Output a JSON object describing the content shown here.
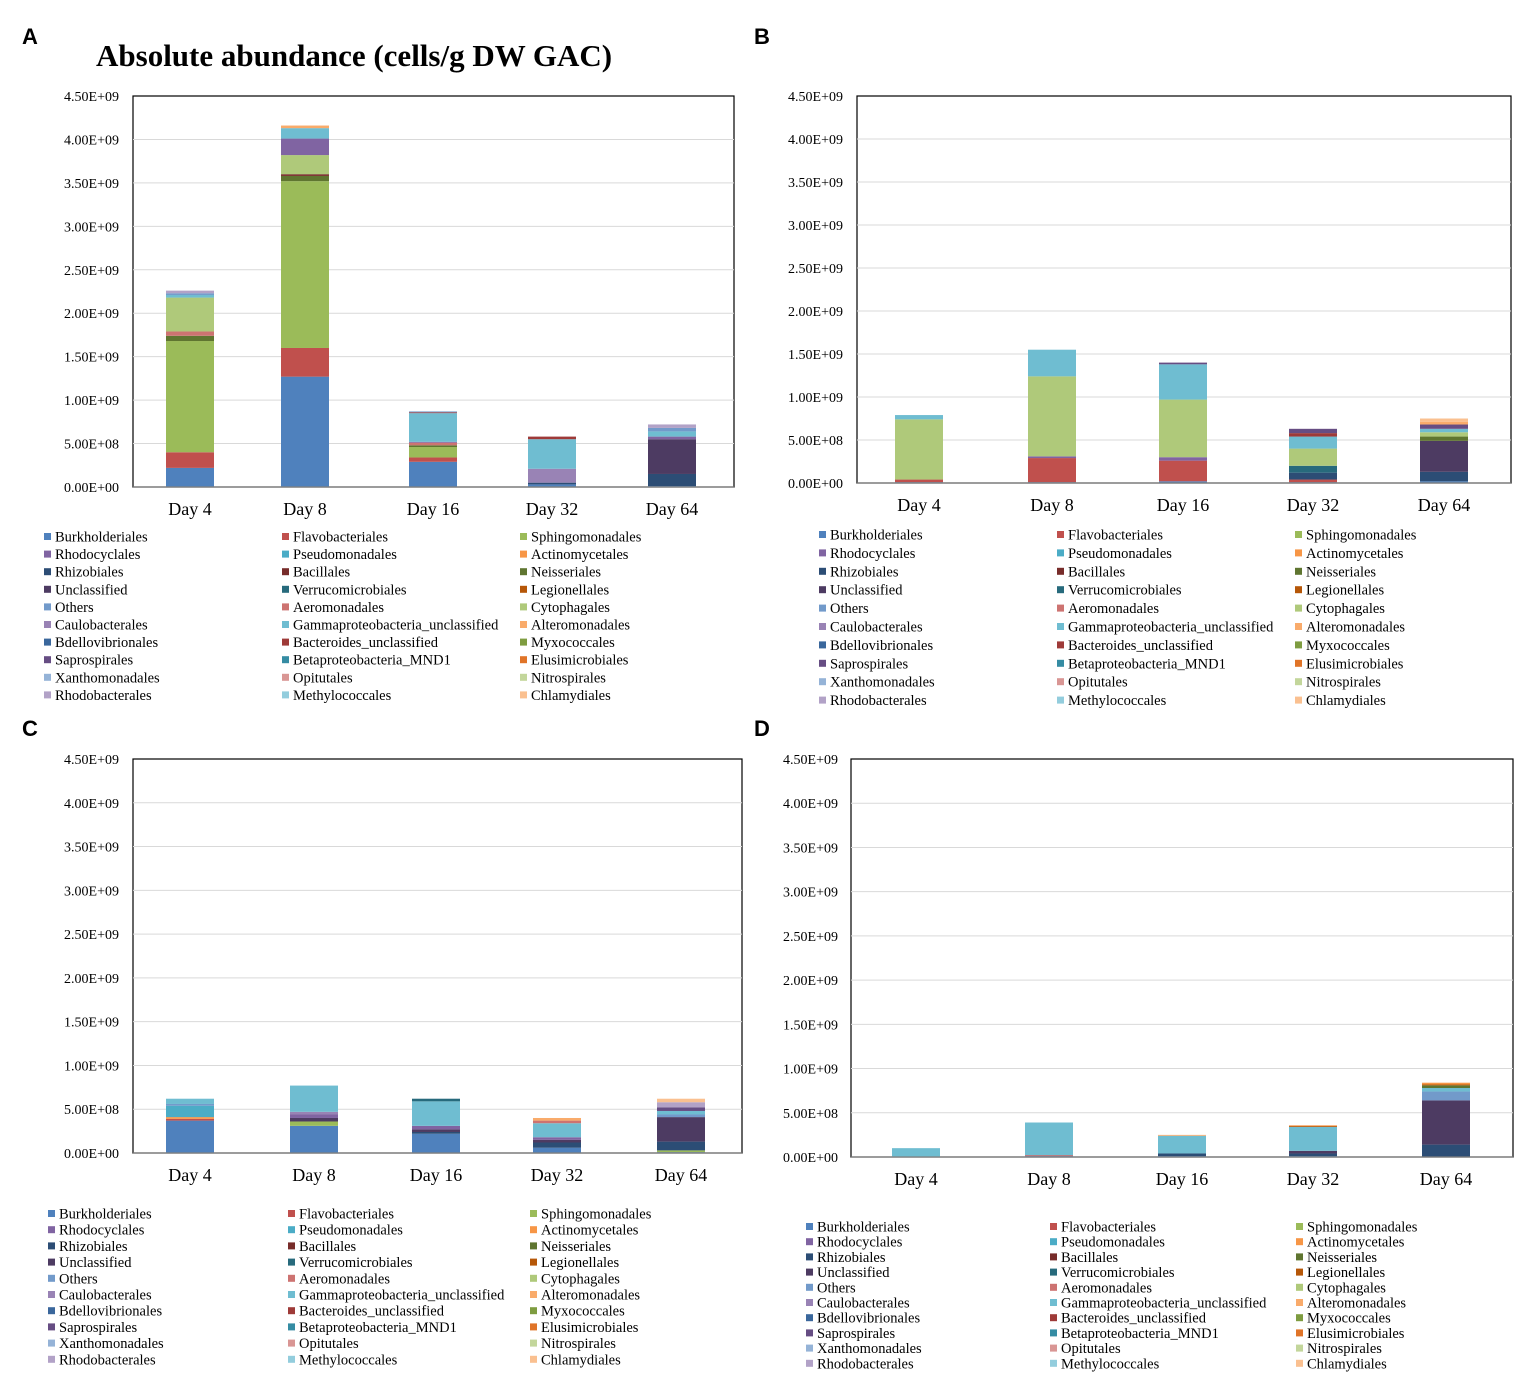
{
  "figure": {
    "title": "Absolute abundance (cells/g DW GAC)"
  },
  "palette": {
    "Burkholderiales": "#4f81bd",
    "Flavobacteriales": "#c0504d",
    "Sphingomonadales": "#9bbb59",
    "Rhodocyclales": "#8064a2",
    "Pseudomonadales": "#4bacc6",
    "Actinomycetales": "#f79646",
    "Rhizobiales": "#2c4d75",
    "Bacillales": "#772c2a",
    "Neisseriales": "#5f7530",
    "Unclassified": "#4d3b62",
    "Verrucomicrobiales": "#276a7c",
    "Legionellales": "#b65708",
    "Others": "#729aca",
    "Aeromonadales": "#cd7371",
    "Cytophagales": "#afc97a",
    "Caulobacterales": "#9983b5",
    "Gammaproteobacteria_unclassified": "#6fbdd1",
    "Alteromonadales": "#f9ab6b",
    "Bdellovibrionales": "#3a679c",
    "Bacteroides_unclassified": "#9e3a38",
    "Myxococcales": "#7e9c40",
    "Saprospirales": "#664d83",
    "Betaproteobacteria_MND1": "#358ca3",
    "Elusimicrobiales": "#e07428",
    "Xanthomonadales": "#95b3d7",
    "Opitutales": "#d99694",
    "Nitrospirales": "#c3d69b",
    "Rhodobacterales": "#b2a2c7",
    "Methylococcales": "#93cddd",
    "Chlamydiales": "#fac090"
  },
  "chart_data": [
    {
      "panel": "A",
      "type": "bar",
      "stacked": true,
      "title": "Absolute abundance (cells/g DW GAC)",
      "xlabel": "",
      "ylabel": "",
      "ylim": [
        0,
        4500000000
      ],
      "yticks": [
        "0.00E+00",
        "5.00E+08",
        "1.00E+09",
        "1.50E+09",
        "2.00E+09",
        "2.50E+09",
        "3.00E+09",
        "3.50E+09",
        "4.00E+09",
        "4.50E+09"
      ],
      "categories": [
        "Day 4",
        "Day 8",
        "Day 16",
        "Day 32",
        "Day 64"
      ],
      "legend_columns": [
        [
          "Burkholderiales",
          "Rhodocyclales",
          "Rhizobiales",
          "Unclassified",
          "Others",
          "Caulobacterales",
          "Bdellovibrionales",
          "Saprospirales",
          "Xanthomonadales",
          "Rhodobacterales"
        ],
        [
          "Flavobacteriales",
          "Pseudomonadales",
          "Bacillales",
          "Verrucomicrobiales",
          "Aeromonadales",
          "Gammaproteobacteria_unclassified",
          "Bacteroides_unclassified",
          "Betaproteobacteria_MND1",
          "Opitutales",
          "Methylococcales"
        ],
        [
          "Sphingomonadales",
          "Actinomycetales",
          "Neisseriales",
          "Legionellales",
          "Cytophagales",
          "Alteromonadales",
          "Myxococcales",
          "Elusimicrobiales",
          "Nitrospirales",
          "Chlamydiales"
        ]
      ],
      "series": [
        {
          "name": "Burkholderiales",
          "values": [
            220000000,
            1270000000,
            290000000,
            30000000,
            10000000
          ]
        },
        {
          "name": "Flavobacteriales",
          "values": [
            180000000,
            330000000,
            50000000,
            0,
            0
          ]
        },
        {
          "name": "Sphingomonadales",
          "values": [
            1280000000,
            1920000000,
            120000000,
            0,
            0
          ]
        },
        {
          "name": "Rhizobiales",
          "values": [
            0,
            0,
            0,
            20000000,
            140000000
          ]
        },
        {
          "name": "Neisseriales",
          "values": [
            60000000,
            60000000,
            20000000,
            0,
            0
          ]
        },
        {
          "name": "Unclassified",
          "values": [
            0,
            0,
            0,
            0,
            400000000
          ]
        },
        {
          "name": "Bacillales",
          "values": [
            0,
            20000000,
            0,
            0,
            0
          ]
        },
        {
          "name": "Aeromonadales",
          "values": [
            50000000,
            0,
            30000000,
            0,
            0
          ]
        },
        {
          "name": "Caulobacterales",
          "values": [
            0,
            0,
            0,
            160000000,
            0
          ]
        },
        {
          "name": "Cytophagales",
          "values": [
            390000000,
            220000000,
            0,
            0,
            0
          ]
        },
        {
          "name": "Rhodocyclales",
          "values": [
            0,
            190000000,
            10000000,
            0,
            30000000
          ]
        },
        {
          "name": "Gammaproteobacteria_unclassified",
          "values": [
            30000000,
            120000000,
            330000000,
            340000000,
            60000000
          ]
        },
        {
          "name": "Bacteroides_unclassified",
          "values": [
            0,
            0,
            10000000,
            30000000,
            0
          ]
        },
        {
          "name": "Others",
          "values": [
            20000000,
            0,
            10000000,
            0,
            40000000
          ]
        },
        {
          "name": "Alteromonadales",
          "values": [
            0,
            30000000,
            0,
            0,
            0
          ]
        },
        {
          "name": "Rhodobacterales",
          "values": [
            30000000,
            0,
            0,
            0,
            40000000
          ]
        }
      ]
    },
    {
      "panel": "B",
      "type": "bar",
      "stacked": true,
      "title": "",
      "xlabel": "",
      "ylabel": "",
      "ylim": [
        0,
        4500000000
      ],
      "yticks": [
        "0.00E+00",
        "5.00E+08",
        "1.00E+09",
        "1.50E+09",
        "2.00E+09",
        "2.50E+09",
        "3.00E+09",
        "3.50E+09",
        "4.00E+09",
        "4.50E+09"
      ],
      "categories": [
        "Day 4",
        "Day 8",
        "Day 16",
        "Day 32",
        "Day 64"
      ],
      "legend_columns": [
        [
          "Burkholderiales",
          "Rhodocyclales",
          "Rhizobiales",
          "Unclassified",
          "Others",
          "Caulobacterales",
          "Bdellovibrionales",
          "Saprospirales",
          "Xanthomonadales",
          "Rhodobacterales"
        ],
        [
          "Flavobacteriales",
          "Pseudomonadales",
          "Bacillales",
          "Verrucomicrobiales",
          "Aeromonadales",
          "Gammaproteobacteria_unclassified",
          "Bacteroides_unclassified",
          "Betaproteobacteria_MND1",
          "Opitutales",
          "Methylococcales"
        ],
        [
          "Sphingomonadales",
          "Actinomycetales",
          "Neisseriales",
          "Legionellales",
          "Cytophagales",
          "Alteromonadales",
          "Myxococcales",
          "Elusimicrobiales",
          "Nitrospirales",
          "Chlamydiales"
        ]
      ],
      "series": [
        {
          "name": "Burkholderiales",
          "values": [
            10000000,
            10000000,
            20000000,
            10000000,
            20000000
          ]
        },
        {
          "name": "Flavobacteriales",
          "values": [
            30000000,
            280000000,
            240000000,
            30000000,
            0
          ]
        },
        {
          "name": "Rhizobiales",
          "values": [
            0,
            0,
            0,
            80000000,
            110000000
          ]
        },
        {
          "name": "Verrucomicrobiales",
          "values": [
            0,
            0,
            0,
            80000000,
            0
          ]
        },
        {
          "name": "Rhodocyclales",
          "values": [
            0,
            20000000,
            40000000,
            0,
            0
          ]
        },
        {
          "name": "Unclassified",
          "values": [
            0,
            0,
            0,
            0,
            360000000
          ]
        },
        {
          "name": "Neisseriales",
          "values": [
            0,
            0,
            0,
            0,
            50000000
          ]
        },
        {
          "name": "Cytophagales",
          "values": [
            700000000,
            930000000,
            670000000,
            200000000,
            50000000
          ]
        },
        {
          "name": "Gammaproteobacteria_unclassified",
          "values": [
            50000000,
            310000000,
            410000000,
            140000000,
            40000000
          ]
        },
        {
          "name": "Bacteroides_unclassified",
          "values": [
            0,
            0,
            0,
            40000000,
            0
          ]
        },
        {
          "name": "Saprospirales",
          "values": [
            0,
            0,
            20000000,
            50000000,
            50000000
          ]
        },
        {
          "name": "Alteromonadales",
          "values": [
            0,
            0,
            0,
            0,
            30000000
          ]
        },
        {
          "name": "Chlamydiales",
          "values": [
            0,
            0,
            0,
            0,
            40000000
          ]
        }
      ]
    },
    {
      "panel": "C",
      "type": "bar",
      "stacked": true,
      "title": "",
      "xlabel": "",
      "ylabel": "",
      "ylim": [
        0,
        4500000000
      ],
      "yticks": [
        "0.00E+00",
        "5.00E+08",
        "1.00E+09",
        "1.50E+09",
        "2.00E+09",
        "2.50E+09",
        "3.00E+09",
        "3.50E+09",
        "4.00E+09",
        "4.50E+09"
      ],
      "categories": [
        "Day 4",
        "Day 8",
        "Day 16",
        "Day 32",
        "Day 64"
      ],
      "legend_columns": [
        [
          "Burkholderiales",
          "Rhodocyclales",
          "Rhizobiales",
          "Unclassified",
          "Others",
          "Caulobacterales",
          "Bdellovibrionales",
          "Saprospirales",
          "Xanthomonadales",
          "Rhodobacterales"
        ],
        [
          "Flavobacteriales",
          "Pseudomonadales",
          "Bacillales",
          "Verrucomicrobiales",
          "Aeromonadales",
          "Gammaproteobacteria_unclassified",
          "Bacteroides_unclassified",
          "Betaproteobacteria_MND1",
          "Opitutales",
          "Methylococcales"
        ],
        [
          "Sphingomonadales",
          "Actinomycetales",
          "Neisseriales",
          "Legionellales",
          "Cytophagales",
          "Alteromonadales",
          "Myxococcales",
          "Elusimicrobiales",
          "Nitrospirales",
          "Chlamydiales"
        ]
      ],
      "series": [
        {
          "name": "Burkholderiales",
          "values": [
            370000000,
            310000000,
            220000000,
            60000000,
            10000000
          ]
        },
        {
          "name": "Sphingomonadales",
          "values": [
            0,
            50000000,
            0,
            0,
            20000000
          ]
        },
        {
          "name": "Flavobacteriales",
          "values": [
            20000000,
            0,
            0,
            0,
            0
          ]
        },
        {
          "name": "Actinomycetales",
          "values": [
            20000000,
            0,
            0,
            0,
            0
          ]
        },
        {
          "name": "Rhizobiales",
          "values": [
            0,
            0,
            20000000,
            60000000,
            100000000
          ]
        },
        {
          "name": "Unclassified",
          "values": [
            0,
            40000000,
            30000000,
            30000000,
            280000000
          ]
        },
        {
          "name": "Rhodocyclales",
          "values": [
            0,
            40000000,
            40000000,
            30000000,
            0
          ]
        },
        {
          "name": "Caulobacterales",
          "values": [
            0,
            30000000,
            0,
            0,
            0
          ]
        },
        {
          "name": "Pseudomonadales",
          "values": [
            130000000,
            0,
            0,
            0,
            0
          ]
        },
        {
          "name": "Others",
          "values": [
            20000000,
            0,
            0,
            0,
            30000000
          ]
        },
        {
          "name": "Gammaproteobacteria_unclassified",
          "values": [
            60000000,
            300000000,
            280000000,
            160000000,
            40000000
          ]
        },
        {
          "name": "Verrucomicrobiales",
          "values": [
            0,
            0,
            30000000,
            0,
            0
          ]
        },
        {
          "name": "Aeromonadales",
          "values": [
            0,
            0,
            0,
            30000000,
            0
          ]
        },
        {
          "name": "Saprospirales",
          "values": [
            0,
            0,
            0,
            0,
            40000000
          ]
        },
        {
          "name": "Rhodobacterales",
          "values": [
            0,
            0,
            0,
            0,
            60000000
          ]
        },
        {
          "name": "Alteromonadales",
          "values": [
            0,
            0,
            0,
            30000000,
            0
          ]
        },
        {
          "name": "Chlamydiales",
          "values": [
            0,
            0,
            0,
            0,
            40000000
          ]
        }
      ]
    },
    {
      "panel": "D",
      "type": "bar",
      "stacked": true,
      "title": "",
      "xlabel": "",
      "ylabel": "",
      "ylim": [
        0,
        4500000000
      ],
      "yticks": [
        "0.00E+00",
        "5.00E+08",
        "1.00E+09",
        "1.50E+09",
        "2.00E+09",
        "2.50E+09",
        "3.00E+09",
        "3.50E+09",
        "4.00E+09",
        "4.50E+09"
      ],
      "categories": [
        "Day 4",
        "Day 8",
        "Day 16",
        "Day 32",
        "Day 64"
      ],
      "legend_columns": [
        [
          "Burkholderiales",
          "Rhodocyclales",
          "Rhizobiales",
          "Unclassified",
          "Others",
          "Caulobacterales",
          "Bdellovibrionales",
          "Saprospirales",
          "Xanthomonadales",
          "Rhodobacterales"
        ],
        [
          "Flavobacteriales",
          "Pseudomonadales",
          "Bacillales",
          "Verrucomicrobiales",
          "Aeromonadales",
          "Gammaproteobacteria_unclassified",
          "Bacteroides_unclassified",
          "Betaproteobacteria_MND1",
          "Opitutales",
          "Methylococcales"
        ],
        [
          "Sphingomonadales",
          "Actinomycetales",
          "Neisseriales",
          "Legionellales",
          "Cytophagales",
          "Alteromonadales",
          "Myxococcales",
          "Elusimicrobiales",
          "Nitrospirales",
          "Chlamydiales"
        ]
      ],
      "series": [
        {
          "name": "Burkholderiales",
          "values": [
            0,
            10000000,
            10000000,
            10000000,
            0
          ]
        },
        {
          "name": "Flavobacteriales",
          "values": [
            0,
            10000000,
            0,
            0,
            0
          ]
        },
        {
          "name": "Rhizobiales",
          "values": [
            0,
            0,
            30000000,
            30000000,
            140000000
          ]
        },
        {
          "name": "Unclassified",
          "values": [
            0,
            0,
            0,
            30000000,
            500000000
          ]
        },
        {
          "name": "Others",
          "values": [
            0,
            0,
            0,
            0,
            100000000
          ]
        },
        {
          "name": "Gammaproteobacteria_unclassified",
          "values": [
            100000000,
            370000000,
            200000000,
            270000000,
            40000000
          ]
        },
        {
          "name": "Neisseriales",
          "values": [
            0,
            0,
            0,
            0,
            30000000
          ]
        },
        {
          "name": "Legionellales",
          "values": [
            0,
            0,
            0,
            10000000,
            10000000
          ]
        },
        {
          "name": "Alteromonadales",
          "values": [
            0,
            0,
            10000000,
            10000000,
            0
          ]
        },
        {
          "name": "Actinomycetales",
          "values": [
            0,
            0,
            0,
            0,
            20000000
          ]
        }
      ]
    }
  ]
}
